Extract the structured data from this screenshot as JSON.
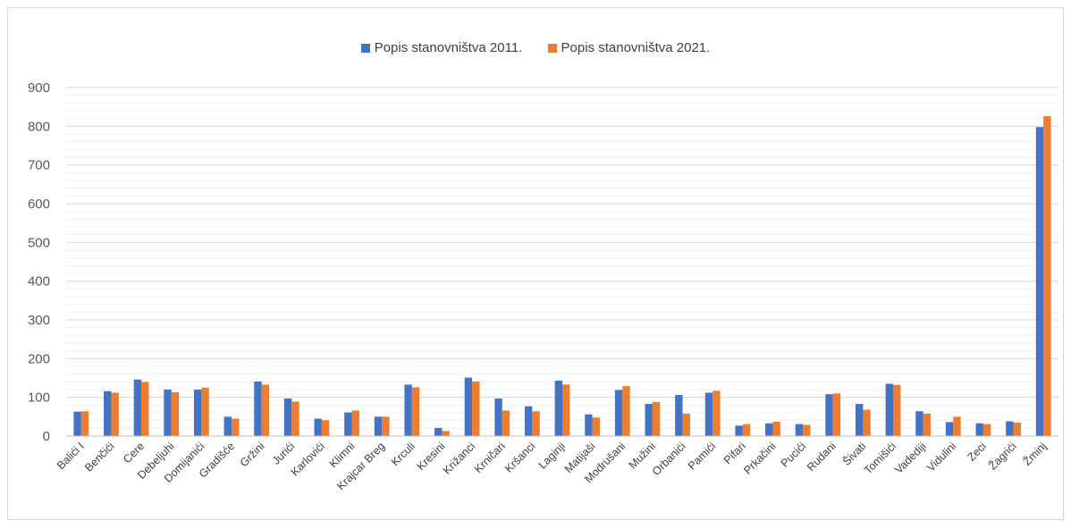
{
  "chart_data": {
    "type": "bar",
    "title": "",
    "xlabel": "",
    "ylabel": "",
    "ylim": [
      0,
      900
    ],
    "yticks": [
      0,
      100,
      200,
      300,
      400,
      500,
      600,
      700,
      800,
      900
    ],
    "grid": true,
    "legend_position": "top",
    "categories": [
      "Balići I",
      "Benčići",
      "Cere",
      "Debeljuhi",
      "Domijanići",
      "Gradišće",
      "Gržini",
      "Jurići",
      "Karlovići",
      "Klimni",
      "Krajcar Breg",
      "Krculi",
      "Kresini",
      "Križanci",
      "Krničari",
      "Kršanci",
      "Laginji",
      "Matijaši",
      "Modrušani",
      "Mužini",
      "Orbanići",
      "Pamići",
      "Pifari",
      "Prkačini",
      "Pucići",
      "Rudani",
      "Šivati",
      "Tomišići",
      "Vadediji",
      "Vidulini",
      "Zeci",
      "Žagrići",
      "Žminj"
    ],
    "series": [
      {
        "name": "Popis stanovništva 2011.",
        "color": "#4472c4",
        "values": [
          63,
          116,
          146,
          120,
          120,
          50,
          141,
          97,
          45,
          61,
          50,
          133,
          21,
          151,
          97,
          77,
          143,
          56,
          119,
          83,
          106,
          112,
          27,
          33,
          31,
          108,
          83,
          135,
          64,
          36,
          33,
          38,
          798
        ]
      },
      {
        "name": "Popis stanovništva 2021.",
        "color": "#ed7d31",
        "values": [
          64,
          112,
          140,
          113,
          125,
          45,
          133,
          89,
          41,
          66,
          50,
          126,
          13,
          141,
          66,
          64,
          133,
          48,
          129,
          88,
          58,
          117,
          31,
          37,
          29,
          110,
          68,
          132,
          58,
          50,
          31,
          35,
          826
        ]
      }
    ]
  }
}
